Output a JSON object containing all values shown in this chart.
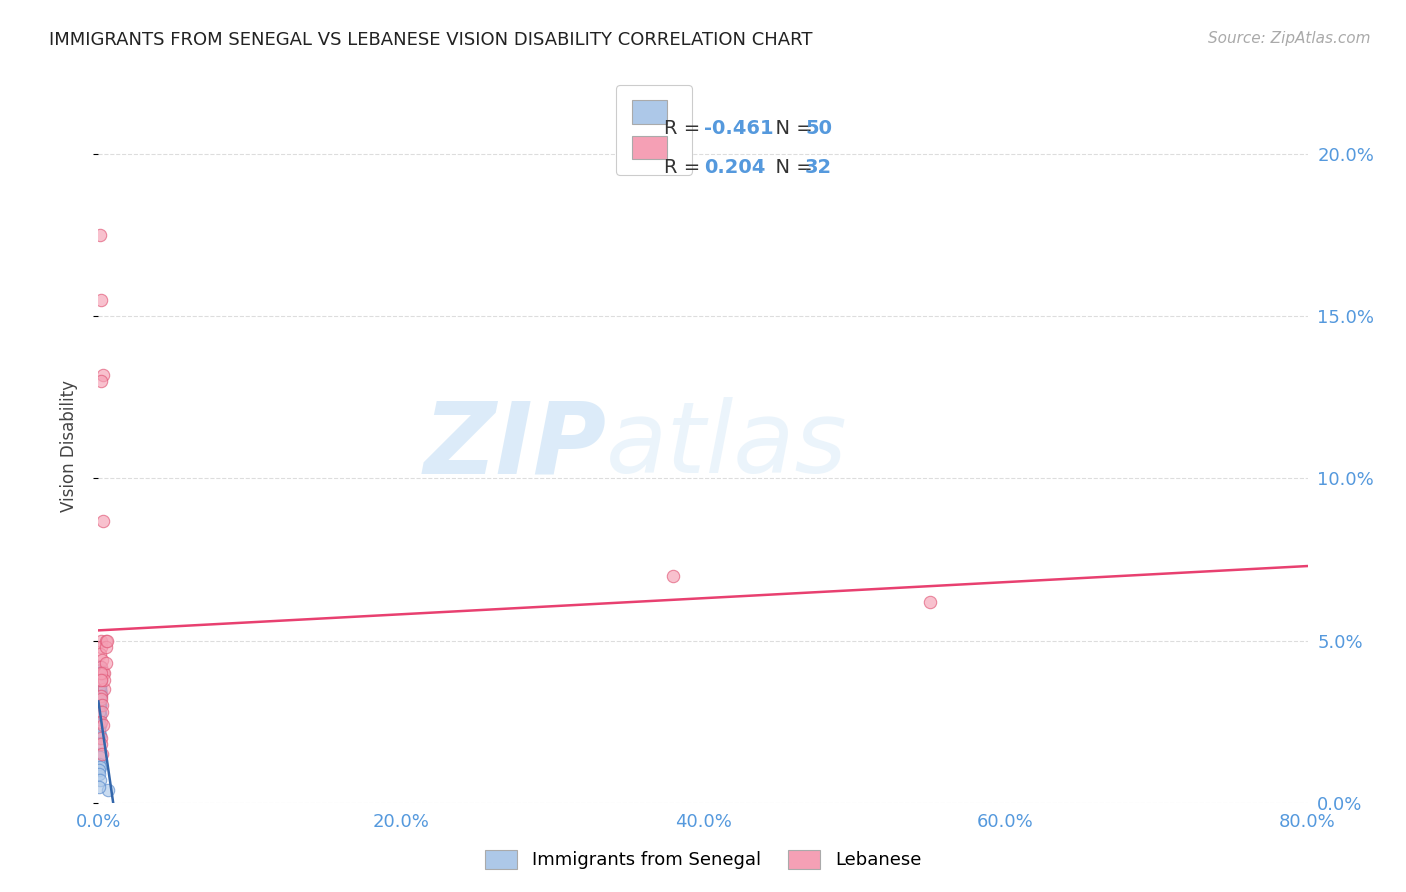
{
  "title": "IMMIGRANTS FROM SENEGAL VS LEBANESE VISION DISABILITY CORRELATION CHART",
  "source": "Source: ZipAtlas.com",
  "ylabel": "Vision Disability",
  "xlabel": "",
  "background_color": "#ffffff",
  "watermark_zip": "ZIP",
  "watermark_atlas": "atlas",
  "legend": {
    "senegal_r": "-0.461",
    "senegal_n": "50",
    "lebanese_r": "0.204",
    "lebanese_n": "32"
  },
  "xlim": [
    0.0,
    0.8
  ],
  "ylim": [
    0.0,
    0.22
  ],
  "yticks": [
    0.0,
    0.05,
    0.1,
    0.15,
    0.2
  ],
  "xticks": [
    0.0,
    0.2,
    0.4,
    0.6,
    0.8
  ],
  "senegal_scatter": {
    "x": [
      0.0005,
      0.001,
      0.0008,
      0.0015,
      0.001,
      0.0008,
      0.0012,
      0.001,
      0.0008,
      0.0005,
      0.0012,
      0.0008,
      0.001,
      0.0006,
      0.0009,
      0.0007,
      0.0005,
      0.0008,
      0.001,
      0.0006,
      0.0007,
      0.0009,
      0.0006,
      0.0008,
      0.0005,
      0.001,
      0.0007,
      0.0006,
      0.0009,
      0.0008,
      0.0012,
      0.0008,
      0.0006,
      0.0005,
      0.0007,
      0.0009,
      0.0006,
      0.0008,
      0.0005,
      0.0007,
      0.0006,
      0.0005,
      0.001,
      0.0006,
      0.0008,
      0.0005,
      0.0007,
      0.0009,
      0.0065,
      0.0004
    ],
    "y": [
      0.04,
      0.038,
      0.036,
      0.034,
      0.042,
      0.033,
      0.035,
      0.032,
      0.041,
      0.039,
      0.038,
      0.037,
      0.033,
      0.037,
      0.035,
      0.034,
      0.038,
      0.03,
      0.04,
      0.03,
      0.036,
      0.03,
      0.032,
      0.03,
      0.04,
      0.037,
      0.033,
      0.038,
      0.033,
      0.036,
      0.028,
      0.027,
      0.025,
      0.023,
      0.03,
      0.021,
      0.028,
      0.024,
      0.02,
      0.022,
      0.018,
      0.015,
      0.014,
      0.012,
      0.011,
      0.01,
      0.009,
      0.007,
      0.004,
      0.005
    ],
    "color": "#adc8e8",
    "edgecolor": "#5588cc",
    "size": 80,
    "alpha": 0.65
  },
  "lebanese_scatter": {
    "x": [
      0.001,
      0.002,
      0.003,
      0.002,
      0.003,
      0.0015,
      0.002,
      0.001,
      0.0025,
      0.002,
      0.003,
      0.0015,
      0.0035,
      0.0015,
      0.002,
      0.0025,
      0.0025,
      0.005,
      0.005,
      0.006,
      0.002,
      0.003,
      0.004,
      0.0035,
      0.0015,
      0.005,
      0.0015,
      0.0025,
      0.0015,
      0.002,
      0.55,
      0.38
    ],
    "y": [
      0.175,
      0.155,
      0.132,
      0.13,
      0.087,
      0.05,
      0.048,
      0.046,
      0.044,
      0.042,
      0.04,
      0.038,
      0.035,
      0.033,
      0.032,
      0.03,
      0.028,
      0.05,
      0.048,
      0.05,
      0.025,
      0.024,
      0.04,
      0.038,
      0.02,
      0.043,
      0.018,
      0.015,
      0.04,
      0.038,
      0.062,
      0.07
    ],
    "color": "#f5a0b5",
    "edgecolor": "#e05575",
    "size": 80,
    "alpha": 0.65
  },
  "senegal_trendline": {
    "color": "#3366aa",
    "linewidth": 1.8
  },
  "lebanese_trendline": {
    "color": "#e84070",
    "linewidth": 1.8
  },
  "tick_color": "#5599dd",
  "grid_color": "#dddddd",
  "title_fontsize": 13,
  "source_fontsize": 11,
  "tick_fontsize": 13,
  "ylabel_fontsize": 12
}
